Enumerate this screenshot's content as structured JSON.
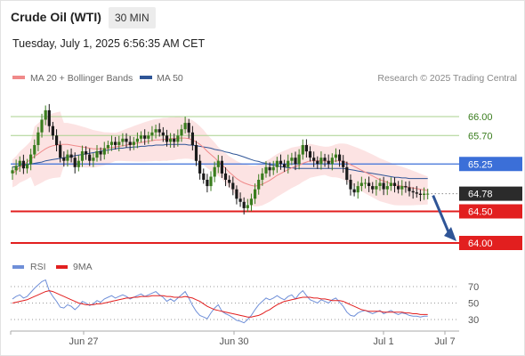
{
  "header": {
    "title": "Crude Oil (WTI)",
    "timeframe": "30 MIN",
    "datetime": "Tuesday, July 1, 2025 6:56:35 AM CET"
  },
  "legend": {
    "ma20": {
      "label": "MA 20 + Bollinger Bands",
      "color": "#f08a8a"
    },
    "ma50": {
      "label": "MA 50",
      "color": "#2f5597"
    },
    "credit": "Research © 2025 Trading Central"
  },
  "colors": {
    "up": "#3a7d1e",
    "down": "#1a1a1a",
    "band": "#fbd9d9",
    "resistance": "#a9d18e",
    "pivot": "#3b6fd8",
    "support": "#e21f1f",
    "current": "#2b2b2b",
    "arrow": "#2f5597"
  },
  "chart_data": [
    {
      "type": "candlestick",
      "title": "Crude Oil (WTI)",
      "timeframe": "30 MIN",
      "x_tick_labels": [
        "Jun 27",
        "Jun 30",
        "Jul 1",
        "Jul 7"
      ],
      "ylim": [
        63.85,
        66.3
      ],
      "levels": [
        {
          "value": 66.0,
          "label": "66.00",
          "type": "resistance"
        },
        {
          "value": 65.7,
          "label": "65.70",
          "type": "resistance"
        },
        {
          "value": 65.25,
          "label": "65.25",
          "type": "pivot"
        },
        {
          "value": 64.78,
          "label": "64.78",
          "type": "current"
        },
        {
          "value": 64.5,
          "label": "64.50",
          "type": "support"
        },
        {
          "value": 64.0,
          "label": "64.00",
          "type": "support"
        }
      ],
      "close": [
        65.15,
        65.22,
        65.3,
        65.18,
        65.25,
        65.4,
        65.55,
        65.75,
        65.95,
        66.1,
        65.85,
        65.7,
        65.55,
        65.35,
        65.3,
        65.4,
        65.35,
        65.2,
        65.3,
        65.45,
        65.4,
        65.3,
        65.35,
        65.45,
        65.4,
        65.5,
        65.55,
        65.6,
        65.55,
        65.6,
        65.65,
        65.6,
        65.55,
        65.6,
        65.65,
        65.7,
        65.65,
        65.7,
        65.75,
        65.8,
        65.75,
        65.7,
        65.6,
        65.65,
        65.6,
        65.7,
        65.8,
        65.9,
        65.75,
        65.55,
        65.3,
        65.1,
        65.0,
        64.9,
        65.05,
        65.2,
        65.3,
        65.1,
        65.0,
        64.95,
        64.85,
        64.7,
        64.65,
        64.55,
        64.6,
        64.7,
        64.85,
        65.0,
        65.1,
        65.2,
        65.15,
        65.2,
        65.3,
        65.25,
        65.2,
        65.3,
        65.35,
        65.25,
        65.4,
        65.55,
        65.45,
        65.35,
        65.3,
        65.25,
        65.35,
        65.3,
        65.25,
        65.35,
        65.4,
        65.3,
        65.2,
        65.0,
        64.85,
        64.8,
        64.9,
        64.95,
        64.95,
        64.9,
        64.85,
        64.9,
        64.95,
        64.85,
        64.9,
        64.95,
        64.9,
        64.85,
        64.9,
        64.88,
        64.82,
        64.8,
        64.78,
        64.76,
        64.78,
        64.78
      ],
      "ma20": [
        65.1,
        65.14,
        65.2,
        65.24,
        65.28,
        65.33,
        65.37,
        65.41,
        65.45,
        65.49,
        65.52,
        65.54,
        65.55,
        65.56,
        65.56,
        65.56,
        65.55,
        65.54,
        65.53,
        65.52,
        65.51,
        65.5,
        65.49,
        65.49,
        65.49,
        65.49,
        65.5,
        65.51,
        65.52,
        65.53,
        65.54,
        65.55,
        65.56,
        65.57,
        65.58,
        65.59,
        65.6,
        65.61,
        65.62,
        65.63,
        65.63,
        65.64,
        65.64,
        65.65,
        65.65,
        65.66,
        65.66,
        65.66,
        65.65,
        65.63,
        65.6,
        65.56,
        65.51,
        65.45,
        65.4,
        65.35,
        65.29,
        65.24,
        65.18,
        65.12,
        65.07,
        65.02,
        64.98,
        64.95,
        64.93,
        64.91,
        64.9,
        64.91,
        64.93,
        64.96,
        64.99,
        65.03,
        65.07,
        65.1,
        65.13,
        65.16,
        65.19,
        65.21,
        65.23,
        65.26,
        65.28,
        65.3,
        65.3,
        65.3,
        65.3,
        65.3,
        65.29,
        65.29,
        65.3,
        65.3,
        65.29,
        65.27,
        65.24,
        65.21,
        65.18,
        65.15,
        65.12,
        65.09,
        65.06,
        65.03,
        65.0,
        64.98,
        64.96,
        64.94,
        64.92,
        64.91,
        64.9,
        64.89,
        64.88,
        64.87,
        64.86,
        64.85,
        64.84,
        64.83
      ],
      "ma50": [
        65.2,
        65.21,
        65.22,
        65.23,
        65.24,
        65.25,
        65.26,
        65.27,
        65.28,
        65.3,
        65.31,
        65.32,
        65.33,
        65.34,
        65.35,
        65.36,
        65.37,
        65.38,
        65.39,
        65.4,
        65.41,
        65.42,
        65.43,
        65.44,
        65.45,
        65.46,
        65.47,
        65.48,
        65.49,
        65.5,
        65.5,
        65.51,
        65.51,
        65.52,
        65.52,
        65.53,
        65.53,
        65.54,
        65.54,
        65.55,
        65.55,
        65.55,
        65.56,
        65.56,
        65.56,
        65.56,
        65.56,
        65.56,
        65.55,
        65.55,
        65.54,
        65.53,
        65.52,
        65.51,
        65.5,
        65.48,
        65.47,
        65.46,
        65.44,
        65.43,
        65.41,
        65.4,
        65.38,
        65.36,
        65.34,
        65.32,
        65.3,
        65.29,
        65.27,
        65.26,
        65.24,
        65.23,
        65.22,
        65.21,
        65.2,
        65.19,
        65.19,
        65.18,
        65.18,
        65.18,
        65.18,
        65.18,
        65.18,
        65.18,
        65.18,
        65.18,
        65.18,
        65.18,
        65.18,
        65.18,
        65.18,
        65.17,
        65.16,
        65.15,
        65.14,
        65.13,
        65.12,
        65.11,
        65.1,
        65.09,
        65.08,
        65.07,
        65.06,
        65.05,
        65.04,
        65.04,
        65.03,
        65.03,
        65.02,
        65.02,
        65.02,
        65.02,
        65.02,
        65.02
      ]
    },
    {
      "type": "line",
      "title": "RSI",
      "legend": [
        "RSI",
        "9MA"
      ],
      "ylim": [
        20,
        80
      ],
      "y_tick_labels": [
        "70",
        "50",
        "30"
      ],
      "rsi": [
        55,
        58,
        60,
        56,
        58,
        63,
        68,
        72,
        76,
        78,
        65,
        58,
        52,
        45,
        44,
        48,
        46,
        42,
        46,
        52,
        50,
        47,
        49,
        53,
        51,
        55,
        57,
        59,
        56,
        58,
        60,
        58,
        55,
        57,
        59,
        61,
        58,
        60,
        62,
        64,
        60,
        57,
        52,
        55,
        52,
        56,
        60,
        64,
        56,
        47,
        40,
        35,
        33,
        31,
        38,
        44,
        48,
        40,
        37,
        35,
        32,
        29,
        28,
        26,
        30,
        35,
        42,
        48,
        52,
        56,
        54,
        56,
        59,
        56,
        54,
        58,
        60,
        55,
        61,
        65,
        59,
        54,
        52,
        50,
        54,
        52,
        50,
        54,
        56,
        51,
        46,
        39,
        35,
        34,
        38,
        40,
        41,
        39,
        37,
        39,
        41,
        37,
        39,
        41,
        38,
        36,
        38,
        37,
        35,
        34,
        34,
        33,
        34,
        34
      ],
      "ma9": [
        50,
        51,
        52,
        53,
        54,
        56,
        58,
        60,
        62,
        64,
        65,
        64,
        62,
        60,
        58,
        56,
        54,
        52,
        50,
        49,
        48,
        48,
        48,
        49,
        49,
        50,
        51,
        52,
        53,
        54,
        55,
        56,
        56,
        57,
        57,
        58,
        58,
        58,
        59,
        59,
        59,
        59,
        58,
        58,
        57,
        57,
        57,
        58,
        57,
        56,
        54,
        52,
        49,
        46,
        44,
        42,
        41,
        40,
        39,
        38,
        37,
        36,
        35,
        34,
        33,
        33,
        34,
        35,
        37,
        40,
        42,
        45,
        48,
        50,
        52,
        53,
        54,
        55,
        56,
        57,
        57,
        57,
        56,
        56,
        55,
        55,
        54,
        53,
        53,
        53,
        52,
        50,
        48,
        46,
        44,
        42,
        41,
        40,
        40,
        40,
        40,
        39,
        39,
        39,
        39,
        39,
        39,
        38,
        38,
        37,
        37,
        36,
        36,
        36
      ]
    }
  ]
}
